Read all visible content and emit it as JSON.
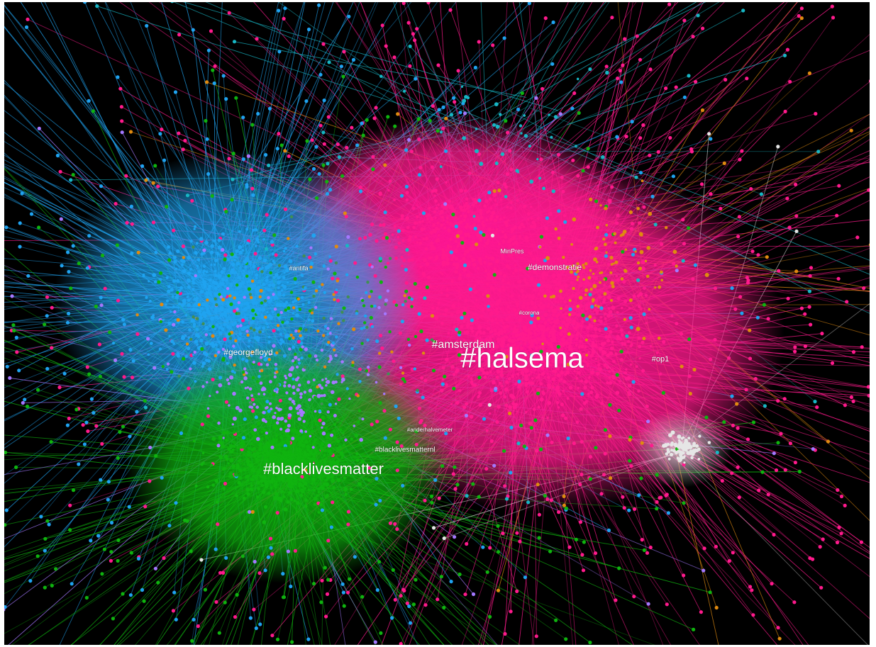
{
  "graph": {
    "background_color": "#000000",
    "community_colors": {
      "pink": "#ff1a8c",
      "blue": "#1fa3f0",
      "green": "#0fb30f",
      "purple": "#a478ff",
      "orange": "#e08a10",
      "teal": "#17b6c4",
      "white": "#e6e6e6",
      "darkgreen": "#3f8f55"
    },
    "labels": [
      {
        "text": "#halsema",
        "size": "xl"
      },
      {
        "text": "#blacklivesmatter",
        "size": "l"
      },
      {
        "text": "#amsterdam",
        "size": "m"
      },
      {
        "text": "#georgefloyd",
        "size": "s"
      },
      {
        "text": "#demonstratie",
        "size": "s"
      },
      {
        "text": "MinPres",
        "size": "xs"
      },
      {
        "text": "#antifa",
        "size": "xs"
      },
      {
        "text": "#corona",
        "size": "xs"
      },
      {
        "text": "#op1",
        "size": "s"
      },
      {
        "text": "#blacklivesmatternl",
        "size": "xs"
      },
      {
        "text": "#anderhalvemeter",
        "size": "xs"
      }
    ]
  }
}
